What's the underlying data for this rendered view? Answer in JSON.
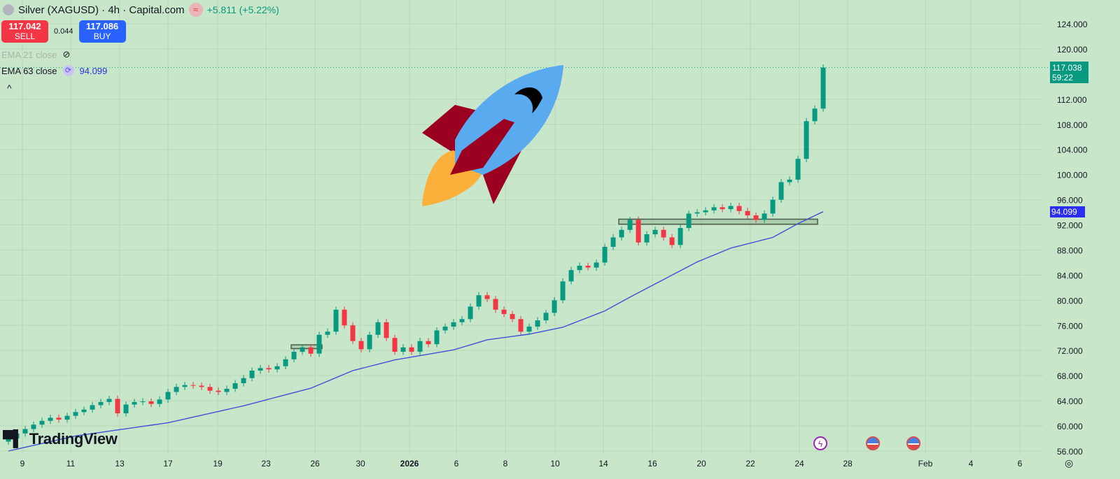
{
  "header": {
    "title": "Silver (XAGUSD) · 4h · Capital.com",
    "change": "+5.811 (+5.22%)",
    "wave_icon": "≈"
  },
  "trade": {
    "sell_price": "117.042",
    "sell_label": "SELL",
    "spread": "0.044",
    "buy_price": "117.086",
    "buy_label": "BUY"
  },
  "indicators": [
    {
      "label": "EMA 21 close",
      "hidden": true
    },
    {
      "label": "EMA 63 close",
      "value": "94.099"
    }
  ],
  "logo": "TradingView",
  "colors": {
    "up": "#089981",
    "down": "#f23645",
    "ema": "#3f51d6",
    "background": "#c8e6c9",
    "grid": "#b7d8b9"
  },
  "chart_data": {
    "type": "candlestick",
    "title": "Silver (XAGUSD) · 4h · Capital.com",
    "ylim": [
      56,
      128
    ],
    "y_ticks": [
      "124.000",
      "120.000",
      "112.000",
      "108.000",
      "104.000",
      "100.000",
      "96.000",
      "92.000",
      "88.000",
      "84.000",
      "80.000",
      "76.000",
      "72.000",
      "68.000",
      "64.000",
      "60.000",
      "56.000"
    ],
    "y_tick_values": [
      124,
      120,
      112,
      108,
      104,
      100,
      96,
      92,
      88,
      84,
      80,
      76,
      72,
      68,
      64,
      60,
      56
    ],
    "x_ticks": [
      "9",
      "11",
      "13",
      "17",
      "19",
      "23",
      "26",
      "30",
      "2026",
      "6",
      "8",
      "10",
      "14",
      "16",
      "20",
      "22",
      "24",
      "28",
      "Feb",
      "4",
      "6"
    ],
    "closes": [
      58.0,
      58.8,
      59.5,
      60.2,
      60.8,
      61.3,
      61.0,
      61.6,
      62.2,
      62.6,
      63.3,
      63.8,
      64.3,
      62.0,
      63.4,
      63.8,
      63.9,
      63.5,
      64.2,
      65.4,
      66.2,
      66.5,
      66.4,
      66.2,
      65.6,
      65.4,
      65.9,
      66.8,
      67.6,
      68.8,
      69.2,
      69.0,
      69.5,
      70.6,
      71.8,
      72.5,
      71.5,
      74.5,
      75.0,
      78.5,
      76.0,
      73.5,
      72.2,
      74.5,
      76.5,
      74.0,
      71.8,
      72.5,
      71.8,
      73.5,
      73.0,
      75.2,
      75.8,
      76.5,
      77.0,
      79.0,
      80.8,
      80.2,
      78.5,
      77.8,
      77.0,
      75.0,
      75.8,
      76.8,
      78.0,
      80.0,
      83.0,
      84.8,
      85.5,
      85.2,
      86.0,
      88.5,
      90.0,
      91.2,
      92.8,
      89.2,
      90.5,
      91.2,
      90.0,
      88.8,
      91.5,
      93.8,
      94.0,
      94.3,
      94.8,
      94.5,
      95.0,
      94.2,
      93.5,
      92.8,
      93.8,
      96.0,
      98.8,
      99.2,
      102.5,
      108.5,
      110.5,
      117.038
    ],
    "first_open": 57.5,
    "ema63": [
      [
        0,
        56.0
      ],
      [
        8,
        58.4
      ],
      [
        19,
        60.5
      ],
      [
        28,
        63.2
      ],
      [
        36,
        66.0
      ],
      [
        41,
        68.8
      ],
      [
        46,
        70.5
      ],
      [
        53,
        72.1
      ],
      [
        57,
        73.7
      ],
      [
        62,
        74.6
      ],
      [
        66,
        75.7
      ],
      [
        71,
        78.3
      ],
      [
        74,
        80.5
      ],
      [
        78,
        83.3
      ],
      [
        82,
        86.1
      ],
      [
        86,
        88.3
      ],
      [
        91,
        90.0
      ],
      [
        94,
        92.2
      ],
      [
        97,
        94.099
      ]
    ],
    "zones": [
      {
        "from_bar": 34,
        "to_bar": 37,
        "low": 72.3,
        "high": 72.9
      },
      {
        "from_bar": 73,
        "to_bar": 96,
        "low": 92.1,
        "high": 92.9
      }
    ],
    "last_price": "117.038",
    "countdown": "59:22",
    "ema_last": "94.099"
  }
}
